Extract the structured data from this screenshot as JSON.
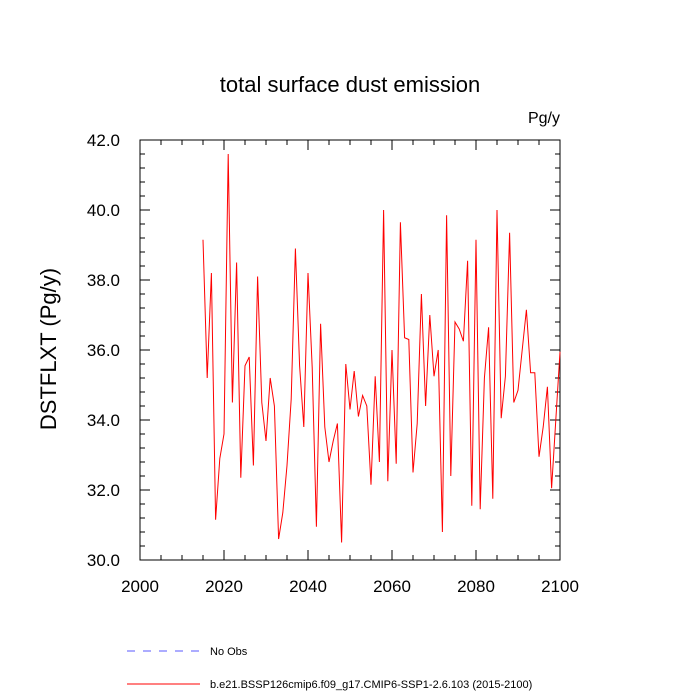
{
  "chart_data": {
    "type": "line",
    "title": "total surface dust emission",
    "units": "Pg/y",
    "xlabel": "",
    "ylabel": "DSTFLXT  (Pg/y)",
    "xlim": [
      2000,
      2100
    ],
    "ylim": [
      30.0,
      42.0
    ],
    "x_ticks": [
      2000,
      2020,
      2040,
      2060,
      2080,
      2100
    ],
    "x_tick_labels": [
      "2000",
      "2020",
      "2040",
      "2060",
      "2080",
      "2100"
    ],
    "y_ticks": [
      30.0,
      32.0,
      34.0,
      36.0,
      38.0,
      40.0,
      42.0
    ],
    "y_tick_labels": [
      "30.0",
      "32.0",
      "34.0",
      "36.0",
      "38.0",
      "40.0",
      "42.0"
    ],
    "grid": false,
    "legend_position": "bottom",
    "series": [
      {
        "name": "b.e21.BSSP126cmip6.f09_g17.CMIP6-SSP1-2.6.103 (2015-2100)",
        "color": "#ff0000",
        "dash": "solid",
        "x": [
          2015,
          2016,
          2017,
          2018,
          2019,
          2020,
          2021,
          2022,
          2023,
          2024,
          2025,
          2026,
          2027,
          2028,
          2029,
          2030,
          2031,
          2032,
          2033,
          2034,
          2035,
          2036,
          2037,
          2038,
          2039,
          2040,
          2041,
          2042,
          2043,
          2044,
          2045,
          2046,
          2047,
          2048,
          2049,
          2050,
          2051,
          2052,
          2053,
          2054,
          2055,
          2056,
          2057,
          2058,
          2059,
          2060,
          2061,
          2062,
          2063,
          2064,
          2065,
          2066,
          2067,
          2068,
          2069,
          2070,
          2071,
          2072,
          2073,
          2074,
          2075,
          2076,
          2077,
          2078,
          2079,
          2080,
          2081,
          2082,
          2083,
          2084,
          2085,
          2086,
          2087,
          2088,
          2089,
          2090,
          2091,
          2092,
          2093,
          2094,
          2095,
          2096,
          2097,
          2098,
          2099,
          2100
        ],
        "values": [
          39.15,
          35.2,
          38.2,
          31.15,
          32.9,
          33.6,
          41.6,
          34.5,
          38.5,
          32.35,
          35.55,
          35.8,
          32.7,
          38.1,
          34.5,
          33.4,
          35.2,
          34.4,
          30.6,
          31.35,
          32.7,
          34.6,
          38.9,
          35.55,
          33.8,
          38.2,
          35.5,
          30.95,
          36.75,
          33.8,
          32.8,
          33.4,
          33.9,
          30.5,
          35.6,
          34.3,
          35.4,
          34.1,
          34.7,
          34.4,
          32.15,
          35.25,
          32.8,
          40.0,
          32.25,
          36.0,
          32.75,
          39.65,
          36.35,
          36.3,
          32.5,
          33.9,
          37.6,
          34.4,
          37.0,
          35.25,
          36.0,
          30.8,
          39.85,
          32.4,
          36.8,
          36.6,
          36.25,
          38.55,
          31.55,
          39.15,
          31.45,
          35.2,
          36.65,
          31.75,
          40.0,
          34.05,
          35.25,
          39.35,
          34.5,
          34.85,
          36.0,
          37.15,
          35.35,
          35.35,
          32.95,
          33.8,
          34.95,
          32.05,
          34.0,
          35.95
        ]
      },
      {
        "name": "No Obs",
        "color": "#5a5aff",
        "dash": "dashed",
        "x": [],
        "values": []
      }
    ]
  }
}
